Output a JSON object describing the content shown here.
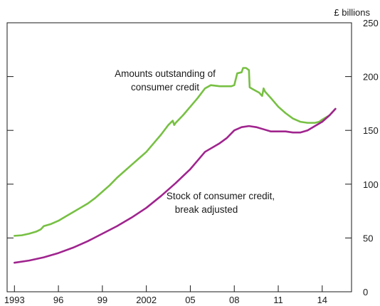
{
  "chart_data": {
    "type": "line",
    "title": "",
    "xlabel": "",
    "ylabel": "",
    "y_unit_label": "£ billions",
    "xlim": [
      1992.5,
      2016.0
    ],
    "ylim": [
      0,
      250
    ],
    "grid": false,
    "x_tick_values": [
      1993,
      1996,
      1999,
      2002,
      2005,
      2008,
      2011,
      2014
    ],
    "x_tick_labels": [
      "1993",
      "96",
      "99",
      "2002",
      "05",
      "08",
      "11",
      "14"
    ],
    "y_tick_values": [
      0,
      50,
      100,
      150,
      200,
      250
    ],
    "y_tick_labels": [
      "0",
      "50",
      "100",
      "150",
      "200",
      "250"
    ],
    "y_axis_side": "right",
    "series": [
      {
        "name": "Amounts outstanding of consumer credit",
        "label_lines": [
          "Amounts outstanding of",
          "consumer credit"
        ],
        "color": "#77c043",
        "points": [
          [
            1993.0,
            52
          ],
          [
            1993.5,
            52.5
          ],
          [
            1994.0,
            54
          ],
          [
            1994.5,
            56
          ],
          [
            1994.8,
            58
          ],
          [
            1995.0,
            61
          ],
          [
            1995.5,
            63
          ],
          [
            1996.0,
            66
          ],
          [
            1996.5,
            70
          ],
          [
            1997.0,
            74
          ],
          [
            1997.5,
            78
          ],
          [
            1998.0,
            82
          ],
          [
            1998.5,
            87
          ],
          [
            1999.0,
            93
          ],
          [
            1999.5,
            99
          ],
          [
            2000.0,
            106
          ],
          [
            2000.5,
            112
          ],
          [
            2001.0,
            118
          ],
          [
            2001.5,
            124
          ],
          [
            2002.0,
            130
          ],
          [
            2002.5,
            138
          ],
          [
            2003.0,
            146
          ],
          [
            2003.5,
            155
          ],
          [
            2003.8,
            159
          ],
          [
            2003.9,
            155
          ],
          [
            2004.0,
            157
          ],
          [
            2004.5,
            164
          ],
          [
            2005.0,
            172
          ],
          [
            2005.5,
            180
          ],
          [
            2006.0,
            189
          ],
          [
            2006.4,
            192
          ],
          [
            2007.0,
            191
          ],
          [
            2007.8,
            191
          ],
          [
            2008.0,
            192
          ],
          [
            2008.2,
            203
          ],
          [
            2008.5,
            204
          ],
          [
            2008.6,
            208
          ],
          [
            2008.8,
            208
          ],
          [
            2009.0,
            206
          ],
          [
            2009.05,
            190
          ],
          [
            2009.3,
            188
          ],
          [
            2009.7,
            185
          ],
          [
            2009.9,
            182
          ],
          [
            2010.0,
            189
          ],
          [
            2010.1,
            186
          ],
          [
            2010.5,
            180
          ],
          [
            2011.0,
            172
          ],
          [
            2011.5,
            166
          ],
          [
            2012.0,
            161
          ],
          [
            2012.5,
            158
          ],
          [
            2013.0,
            157
          ],
          [
            2013.5,
            157
          ],
          [
            2013.8,
            158
          ],
          [
            2014.0,
            160
          ],
          [
            2014.5,
            164
          ],
          [
            2014.9,
            170
          ]
        ]
      },
      {
        "name": "Stock of consumer credit, break adjusted",
        "label_lines": [
          "Stock of consumer credit,",
          "break adjusted"
        ],
        "color": "#a0248e",
        "points": [
          [
            1993.0,
            27
          ],
          [
            1994.0,
            29
          ],
          [
            1995.0,
            32
          ],
          [
            1996.0,
            36
          ],
          [
            1997.0,
            41
          ],
          [
            1998.0,
            47
          ],
          [
            1999.0,
            54
          ],
          [
            2000.0,
            61
          ],
          [
            2001.0,
            69
          ],
          [
            2002.0,
            78
          ],
          [
            2003.0,
            89
          ],
          [
            2004.0,
            101
          ],
          [
            2005.0,
            114
          ],
          [
            2005.5,
            122
          ],
          [
            2006.0,
            130
          ],
          [
            2007.0,
            138
          ],
          [
            2007.5,
            143
          ],
          [
            2008.0,
            150
          ],
          [
            2008.5,
            153
          ],
          [
            2009.0,
            154
          ],
          [
            2009.5,
            153
          ],
          [
            2010.0,
            151
          ],
          [
            2010.5,
            149
          ],
          [
            2011.0,
            149
          ],
          [
            2011.5,
            149
          ],
          [
            2012.0,
            148
          ],
          [
            2012.5,
            148
          ],
          [
            2013.0,
            150
          ],
          [
            2013.5,
            154
          ],
          [
            2014.0,
            158
          ],
          [
            2014.5,
            164
          ],
          [
            2014.9,
            170
          ]
        ]
      }
    ]
  }
}
